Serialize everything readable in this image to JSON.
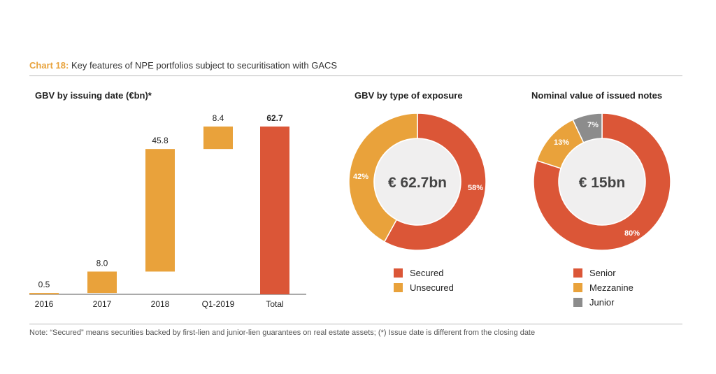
{
  "header": {
    "label": "Chart 18:",
    "title": "Key features of NPE portfolios subject to securitisation with GACS"
  },
  "colors": {
    "orange": "#e9a23b",
    "red": "#db5637",
    "grey": "#8c8c8c",
    "center": "#f0efef",
    "accent": "#e8a33d"
  },
  "chart_data": [
    {
      "type": "bar",
      "subtype": "waterfall",
      "title": "GBV by issuing date (€bn)*",
      "categories": [
        "2016",
        "2017",
        "2018",
        "Q1-2019",
        "Total"
      ],
      "values": [
        0.5,
        8.0,
        45.8,
        8.4,
        62.7
      ],
      "value_labels": [
        "0.5",
        "8.0",
        "45.8",
        "8.4",
        "62.7"
      ],
      "bar_colors": [
        "orange",
        "orange",
        "orange",
        "orange",
        "red"
      ],
      "ylim": [
        0,
        62.7
      ]
    },
    {
      "type": "pie",
      "subtype": "donut",
      "title": "GBV by type of exposure",
      "center_label": "€ 62.7bn",
      "labels": [
        "Secured",
        "Unsecured"
      ],
      "values": [
        58,
        42
      ],
      "value_labels": [
        "58%",
        "42%"
      ],
      "colors": [
        "red",
        "orange"
      ]
    },
    {
      "type": "pie",
      "subtype": "donut",
      "title": "Nominal value of issued notes",
      "center_label": "€ 15bn",
      "labels": [
        "Senior",
        "Mezzanine",
        "Junior"
      ],
      "values": [
        80,
        13,
        7
      ],
      "value_labels": [
        "80%",
        "13%",
        "7%"
      ],
      "colors": [
        "red",
        "orange",
        "grey"
      ]
    }
  ],
  "note": "Note: “Secured” means securities backed by first-lien and junior-lien guarantees on real estate assets; (*) Issue date is different from the closing date"
}
